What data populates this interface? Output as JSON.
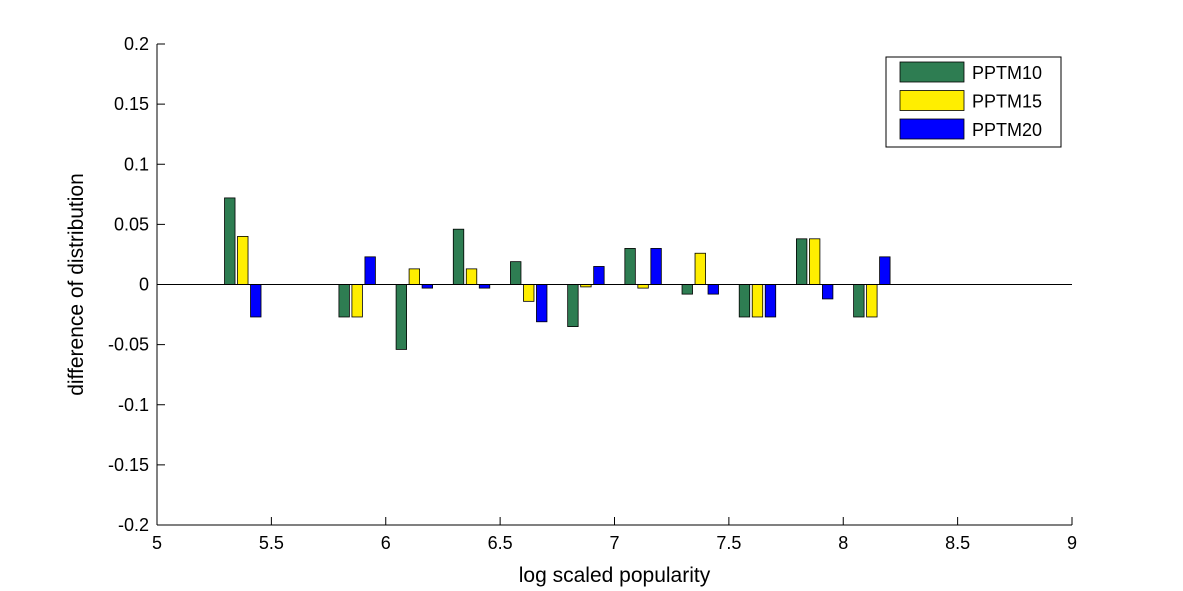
{
  "chart_data": {
    "type": "bar",
    "title": "",
    "xlabel": "log scaled popularity",
    "ylabel": "difference of distribution",
    "xlim": [
      5,
      9
    ],
    "ylim": [
      -0.2,
      0.2
    ],
    "xticks": [
      5,
      5.5,
      6,
      6.5,
      7,
      7.5,
      8,
      8.5,
      9
    ],
    "xtick_labels": [
      "5",
      "5.5",
      "6",
      "6.5",
      "7",
      "7.5",
      "8",
      "8.5",
      "9"
    ],
    "yticks": [
      -0.2,
      -0.15,
      -0.1,
      -0.05,
      0,
      0.05,
      0.1,
      0.15,
      0.2
    ],
    "ytick_labels": [
      "-0.2",
      "-0.15",
      "-0.1",
      "-0.05",
      "0",
      "0.05",
      "0.1",
      "0.15",
      "0.2"
    ],
    "grid": false,
    "legend_position": "top-right",
    "group_centers": [
      5.375,
      5.875,
      6.125,
      6.375,
      6.625,
      6.875,
      7.125,
      7.375,
      7.625,
      7.875,
      8.125
    ],
    "series": [
      {
        "name": "PPTM10",
        "color": "#2e7d52",
        "values": [
          0.072,
          -0.027,
          -0.054,
          0.046,
          0.019,
          -0.035,
          0.03,
          -0.008,
          -0.027,
          0.038,
          -0.027
        ]
      },
      {
        "name": "PPTM15",
        "color": "#ffee00",
        "values": [
          0.04,
          -0.027,
          0.013,
          0.013,
          -0.014,
          -0.002,
          -0.003,
          0.026,
          -0.027,
          0.038,
          -0.027
        ]
      },
      {
        "name": "PPTM20",
        "color": "#0000ff",
        "values": [
          -0.027,
          0.023,
          -0.003,
          -0.003,
          -0.031,
          0.015,
          0.03,
          -0.008,
          -0.027,
          -0.012,
          0.023
        ]
      }
    ]
  }
}
